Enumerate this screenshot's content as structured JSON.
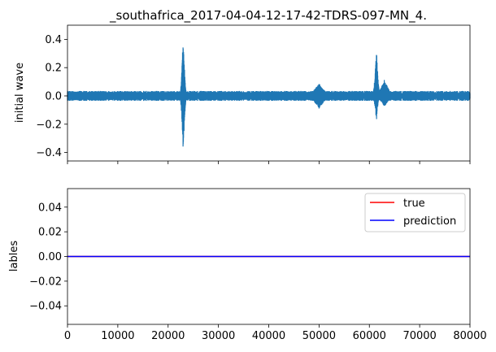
{
  "chart_data": [
    {
      "type": "line",
      "title": "_southafrica_2017-04-04-12-17-42-TDRS-097-MN_4.",
      "ylabel": "initial wave",
      "xlim": [
        0,
        80000
      ],
      "ylim": [
        -0.46,
        0.5
      ],
      "y_ticks": [
        -0.4,
        -0.2,
        0.0,
        0.2,
        0.4
      ],
      "y_tick_labels": [
        "−0.4",
        "−0.2",
        "0.0",
        "0.2",
        "0.4"
      ],
      "x_ticks": [
        0,
        10000,
        20000,
        30000,
        40000,
        50000,
        60000,
        70000,
        80000
      ],
      "x_tick_labels_shown": false,
      "series": [
        {
          "color": "#1f77b4",
          "baseline_amplitude": 0.025,
          "events": [
            {
              "x": 23000,
              "min": -0.42,
              "max": 0.46,
              "width": 800
            },
            {
              "x": 50000,
              "min": -0.09,
              "max": 0.09,
              "width": 3500
            },
            {
              "x": 61400,
              "min": -0.18,
              "max": 0.34,
              "width": 900
            },
            {
              "x": 63000,
              "min": -0.08,
              "max": 0.12,
              "width": 2500
            }
          ]
        }
      ]
    },
    {
      "type": "line",
      "ylabel": "lables",
      "xlim": [
        0,
        80000
      ],
      "ylim": [
        -0.055,
        0.055
      ],
      "y_ticks": [
        -0.04,
        -0.02,
        0.0,
        0.02,
        0.04
      ],
      "y_tick_labels": [
        "−0.04",
        "−0.02",
        "0.00",
        "0.02",
        "0.04"
      ],
      "x_ticks": [
        0,
        10000,
        20000,
        30000,
        40000,
        50000,
        60000,
        70000,
        80000
      ],
      "x_tick_labels": [
        "0",
        "10000",
        "20000",
        "30000",
        "40000",
        "50000",
        "60000",
        "70000",
        "80000"
      ],
      "legend_position": "top-right",
      "series": [
        {
          "name": "true",
          "color": "#ff0000",
          "x": [
            0,
            80000
          ],
          "y": [
            0,
            0
          ]
        },
        {
          "name": "prediction",
          "color": "#0000ff",
          "x": [
            0,
            80000
          ],
          "y": [
            0,
            0
          ]
        }
      ]
    }
  ]
}
